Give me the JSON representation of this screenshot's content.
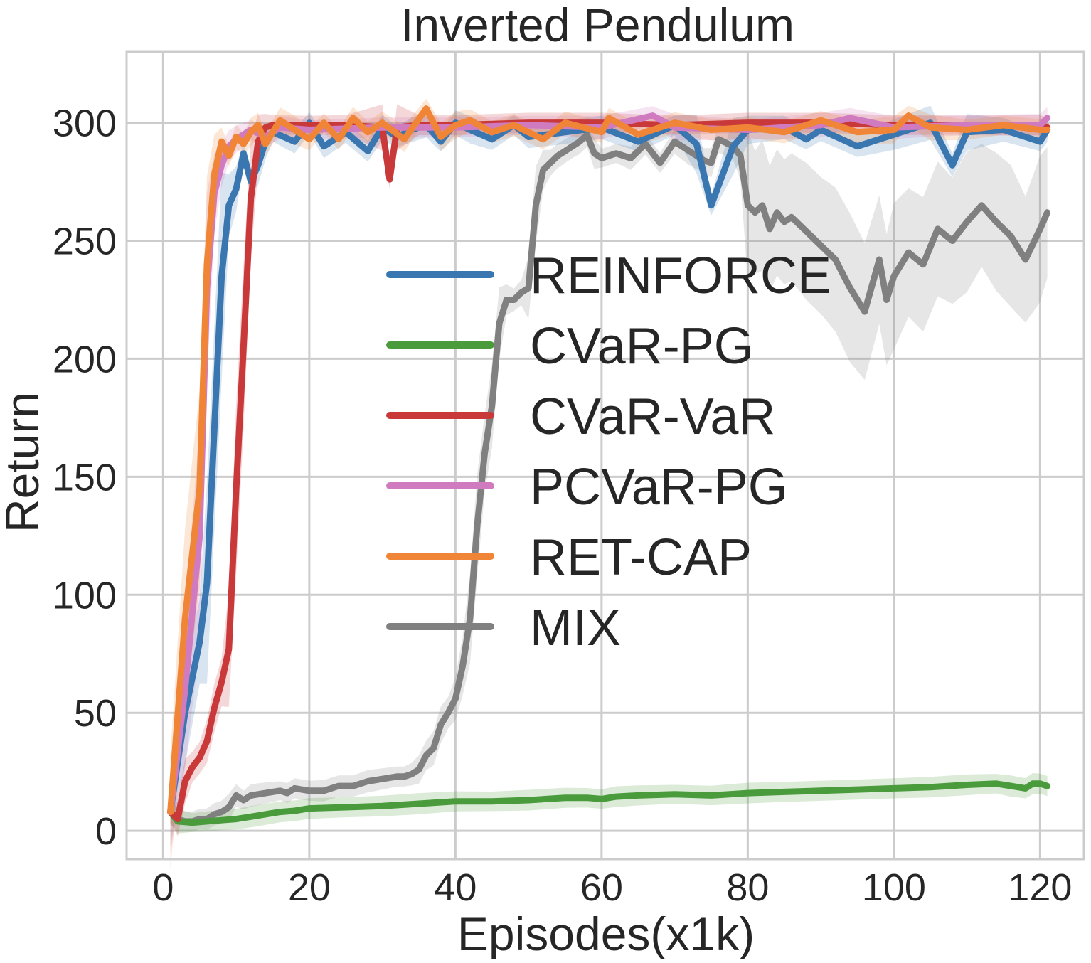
{
  "chart_data": {
    "type": "line",
    "title": "Inverted Pendulum",
    "xlabel": "Episodes(x1k)",
    "ylabel": "Return",
    "xlim": [
      -5,
      126
    ],
    "ylim": [
      -12,
      330
    ],
    "xticks": [
      0,
      20,
      40,
      60,
      80,
      100,
      120
    ],
    "yticks": [
      0,
      50,
      100,
      150,
      200,
      250,
      300
    ],
    "xtick_labels": [
      "0",
      "20",
      "40",
      "60",
      "80",
      "100",
      "120"
    ],
    "ytick_labels": [
      "0",
      "50",
      "100",
      "150",
      "200",
      "250",
      "300"
    ],
    "grid": true,
    "legend_position": "center",
    "series": [
      {
        "name": "REINFORCE",
        "color": "#3a76b0",
        "x": [
          1,
          3,
          5,
          6,
          8,
          9,
          10,
          11,
          12,
          13,
          14,
          15,
          18,
          20,
          22,
          25,
          28,
          30,
          32,
          34,
          36,
          38,
          40,
          42,
          45,
          48,
          50,
          55,
          60,
          65,
          70,
          73,
          75,
          78,
          80,
          85,
          88,
          90,
          95,
          100,
          105,
          108,
          110,
          115,
          120,
          121
        ],
        "y": [
          8,
          50,
          80,
          105,
          235,
          265,
          272,
          287,
          275,
          282,
          292,
          296,
          292,
          300,
          290,
          296,
          288,
          298,
          294,
          297,
          299,
          292,
          300,
          297,
          293,
          299,
          294,
          296,
          298,
          292,
          299,
          291,
          265,
          290,
          297,
          298,
          293,
          297,
          290,
          295,
          300,
          282,
          296,
          297,
          292,
          297
        ]
      },
      {
        "name": "CVaR-PG",
        "color": "#4a9b3c",
        "x": [
          1,
          2,
          4,
          6,
          8,
          10,
          12,
          14,
          16,
          18,
          20,
          25,
          30,
          35,
          40,
          45,
          50,
          55,
          58,
          60,
          62,
          65,
          70,
          75,
          80,
          85,
          90,
          95,
          100,
          105,
          110,
          114,
          116,
          118,
          119,
          120,
          121
        ],
        "y": [
          8,
          4,
          3.5,
          4,
          4.5,
          5,
          6,
          7,
          8,
          8.5,
          9.5,
          10,
          10.5,
          11.5,
          12.5,
          12.5,
          13,
          14,
          14,
          13.5,
          14.5,
          15,
          15.5,
          15,
          16,
          16.5,
          17,
          17.5,
          18,
          18.5,
          19.5,
          20,
          19,
          18,
          20,
          20,
          19
        ]
      },
      {
        "name": "CVaR-VaR",
        "color": "#c9393a",
        "x": [
          1,
          2,
          3,
          4,
          5,
          6,
          7,
          8,
          9,
          10,
          11,
          12,
          13,
          14,
          15,
          20,
          25,
          30,
          31,
          32,
          35,
          40,
          50,
          60,
          70,
          80,
          90,
          100,
          110,
          120,
          121
        ],
        "y": [
          8,
          5,
          21,
          27,
          31,
          38,
          52,
          63,
          77,
          145,
          205,
          268,
          292,
          298,
          299,
          299,
          299,
          298,
          276,
          298,
          299,
          299,
          300,
          300,
          299,
          300,
          300,
          299,
          299,
          299,
          298
        ]
      },
      {
        "name": "PCVaR-PG",
        "color": "#d07ac0",
        "x": [
          1,
          3,
          5,
          6,
          7,
          8,
          9,
          10,
          12,
          14,
          16,
          20,
          30,
          40,
          50,
          60,
          67,
          70,
          80,
          90,
          94,
          100,
          110,
          120,
          121
        ],
        "y": [
          8,
          60,
          125,
          230,
          270,
          282,
          290,
          293,
          297,
          294,
          298,
          297,
          298,
          298,
          299,
          298,
          303,
          298,
          297,
          299,
          302,
          298,
          299,
          299,
          302
        ]
      },
      {
        "name": "RET-CAP",
        "color": "#f08537",
        "x": [
          1,
          3,
          5,
          6,
          7,
          8,
          9,
          10,
          11,
          12,
          13,
          14,
          16,
          18,
          20,
          22,
          24,
          26,
          28,
          30,
          33,
          36,
          38,
          40,
          42,
          45,
          48,
          52,
          55,
          60,
          61,
          65,
          70,
          75,
          80,
          85,
          90,
          95,
          100,
          102,
          105,
          110,
          115,
          120,
          121
        ],
        "y": [
          8,
          90,
          145,
          240,
          278,
          292,
          286,
          294,
          291,
          296,
          299,
          291,
          301,
          297,
          293,
          300,
          293,
          302,
          296,
          300,
          293,
          306,
          294,
          299,
          301,
          296,
          299,
          293,
          300,
          296,
          302,
          295,
          300,
          297,
          298,
          296,
          301,
          296,
          297,
          303,
          298,
          297,
          299,
          297,
          297
        ]
      },
      {
        "name": "MIX",
        "color": "#808080",
        "x": [
          1,
          2,
          3,
          4,
          5,
          6,
          7,
          8,
          9,
          10,
          11,
          12,
          14,
          16,
          17,
          18,
          20,
          22,
          24,
          26,
          28,
          30,
          32,
          33,
          34,
          35,
          36,
          37,
          38,
          39,
          40,
          41,
          42,
          43,
          44,
          45,
          46,
          47,
          48,
          49,
          50,
          51,
          52,
          53,
          54,
          55,
          56,
          57,
          58,
          59,
          60,
          62,
          64,
          66,
          68,
          70,
          72,
          74,
          75,
          76,
          78,
          79,
          80,
          81,
          82,
          83,
          84,
          85,
          86,
          88,
          90,
          92,
          94,
          96,
          98,
          99,
          100,
          102,
          104,
          106,
          108,
          110,
          112,
          114,
          116,
          118,
          120,
          121
        ],
        "y": [
          8,
          5,
          4,
          4,
          5,
          5,
          7,
          8,
          10,
          15,
          13,
          15,
          16,
          17,
          16,
          18,
          17,
          17,
          19,
          19,
          21,
          22,
          23,
          23,
          24,
          26,
          32,
          35,
          45,
          50,
          56,
          70,
          90,
          130,
          160,
          180,
          215,
          225,
          225,
          228,
          230,
          265,
          280,
          283,
          286,
          288,
          290,
          292,
          295,
          287,
          285,
          287,
          285,
          291,
          283,
          292,
          288,
          284,
          283,
          293,
          290,
          286,
          265,
          262,
          265,
          255,
          262,
          258,
          260,
          254,
          248,
          242,
          230,
          220,
          242,
          225,
          235,
          245,
          240,
          255,
          250,
          258,
          265,
          258,
          252,
          242,
          255,
          262
        ]
      }
    ]
  }
}
